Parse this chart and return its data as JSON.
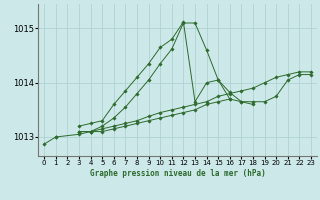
{
  "title": "Graphe pression niveau de la mer (hPa)",
  "bg_color": "#cce8e8",
  "grid_color": "#aacece",
  "line_color": "#2d6a2d",
  "x_ticks": [
    0,
    1,
    2,
    3,
    4,
    5,
    6,
    7,
    8,
    9,
    10,
    11,
    12,
    13,
    14,
    15,
    16,
    17,
    18,
    19,
    20,
    21,
    22,
    23
  ],
  "y_ticks": [
    1013,
    1014,
    1015
  ],
  "ylim": [
    1012.65,
    1015.45
  ],
  "xlim": [
    -0.5,
    23.5
  ],
  "series": {
    "line1": [
      1012.87,
      1013.0,
      null,
      null,
      null,
      null,
      null,
      null,
      null,
      null,
      null,
      null,
      null,
      null,
      null,
      null,
      null,
      null,
      null,
      null,
      null,
      null,
      null,
      null
    ],
    "line2": [
      null,
      1013.0,
      null,
      1013.05,
      1013.1,
      1013.2,
      1013.35,
      1013.55,
      1013.8,
      1014.05,
      1014.35,
      1014.62,
      1015.1,
      1015.1,
      1014.6,
      1014.05,
      1013.7,
      null,
      null,
      null,
      null,
      null,
      null,
      null
    ],
    "line3": [
      null,
      null,
      null,
      1013.2,
      1013.25,
      1013.3,
      1013.6,
      1013.85,
      1014.1,
      1014.35,
      1014.65,
      1014.8,
      1015.12,
      1013.65,
      1014.0,
      1014.05,
      1013.82,
      1013.65,
      1013.6,
      null,
      null,
      null,
      null,
      null
    ],
    "line4": [
      null,
      null,
      null,
      1013.1,
      1013.1,
      1013.1,
      1013.15,
      1013.2,
      1013.25,
      1013.3,
      1013.35,
      1013.4,
      1013.45,
      1013.5,
      1013.6,
      1013.65,
      1013.7,
      1013.65,
      1013.65,
      1013.65,
      1013.75,
      1014.05,
      1014.15,
      1014.15
    ],
    "line5": [
      null,
      null,
      null,
      1013.1,
      1013.1,
      1013.15,
      1013.2,
      1013.25,
      1013.3,
      1013.38,
      1013.45,
      1013.5,
      1013.55,
      1013.6,
      1013.65,
      1013.75,
      1013.8,
      1013.85,
      1013.9,
      1014.0,
      1014.1,
      1014.15,
      1014.2,
      1014.2
    ]
  }
}
